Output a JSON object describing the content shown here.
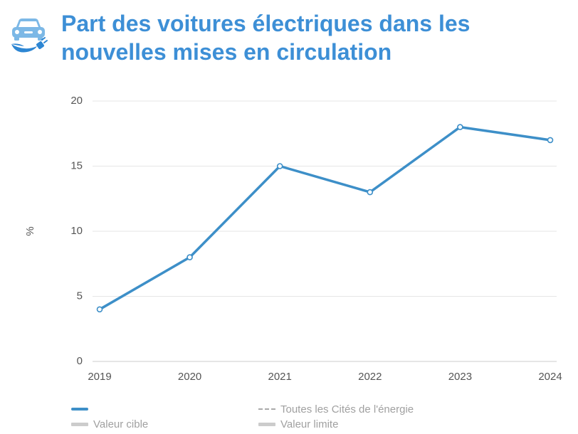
{
  "header": {
    "icon": "electric-car-icon"
  },
  "chart_data": {
    "type": "line",
    "title": "Part des voitures électriques dans les nouvelles mises en circulation",
    "xlabel": "",
    "ylabel": "%",
    "categories": [
      "2019",
      "2020",
      "2021",
      "2022",
      "2023",
      "2024"
    ],
    "series": [
      {
        "values": [
          4,
          8,
          15,
          13,
          18,
          17
        ],
        "color": "#3d8fc8",
        "marker": "circle"
      }
    ],
    "ylim": [
      0,
      20
    ],
    "yticks": [
      0,
      5,
      10,
      15,
      20
    ],
    "grid": true,
    "legend_position": "bottom"
  },
  "legend": {
    "items": [
      {
        "swatch": "solid-line",
        "color": "#3d8fc8"
      },
      {
        "swatch": "dashed-line",
        "color": "#aaaaaa",
        "label": "Toutes les Cités de l'énergie"
      },
      {
        "swatch": "thick-bar",
        "color": "#cccccc",
        "label": "Valeur cible"
      },
      {
        "swatch": "thick-bar",
        "color": "#cccccc",
        "label": "Valeur limite"
      }
    ]
  },
  "colors": {
    "title": "#3d8fd6",
    "accent": "#3d8fc8",
    "grid": "#e6e6e6",
    "axis": "#cccccc",
    "tick_text": "#555555",
    "muted_text": "#a0a0a0"
  }
}
